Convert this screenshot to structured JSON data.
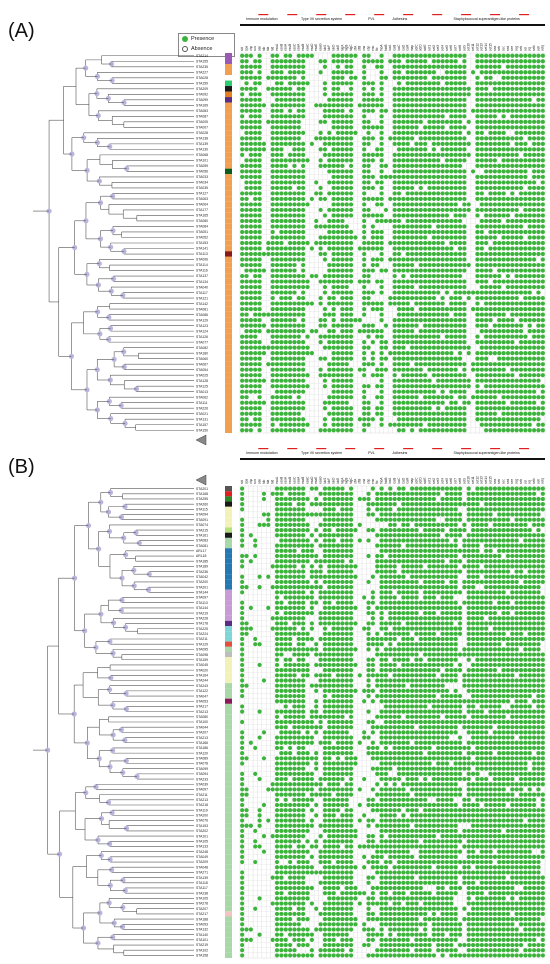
{
  "panels": [
    {
      "id": "A",
      "label": "(A)"
    },
    {
      "id": "B",
      "label": "(B)"
    }
  ],
  "legend": {
    "presence": "Presence",
    "absence": "Absence"
  },
  "colors": {
    "presence": "#3cb43c",
    "absence": "#ffffff",
    "tree": "#555555",
    "node": "#b9b6dd",
    "highlight": "#e02020"
  },
  "categories": [
    "Immune modulation",
    "Type VII secretion system",
    "PVL",
    "Adhesins",
    "Staphylococcal superantigen-like proteins"
  ],
  "genes": [
    "sbi",
    "spa",
    "chp",
    "scn",
    "sak",
    "hlb",
    "hla",
    "hld",
    "esxA",
    "esxB",
    "essA",
    "essB",
    "essC",
    "esaA",
    "esaB",
    "esaC",
    "esaD",
    "esaE",
    "esaG",
    "lukS",
    "lukF",
    "lukD",
    "lukE",
    "hlgA",
    "hlgB",
    "hlgC",
    "clfA",
    "clfB",
    "cna",
    "ebp",
    "eno",
    "fib",
    "fnbA",
    "fnbB",
    "icaA",
    "icaB",
    "icaC",
    "icaD",
    "icaR",
    "map",
    "sdrC",
    "sdrD",
    "sdrE",
    "set1",
    "set2",
    "set3",
    "set4",
    "set5",
    "set6",
    "set7",
    "set8",
    "set9",
    "set10",
    "set11",
    "set12",
    "set13",
    "set14",
    "set15",
    "sea",
    "seb",
    "sec",
    "sed",
    "see",
    "seg",
    "seh",
    "sei",
    "sej",
    "selk",
    "sell",
    "selq"
  ],
  "panel_a": {
    "strains": [
      "STA214",
      "STA155",
      "STA235",
      "STA227",
      "STA028",
      "STA159",
      "STA209",
      "STA092",
      "STA099",
      "STA169",
      "STA083",
      "STA087",
      "STA005",
      "STA007",
      "STA028",
      "STA138",
      "STA139",
      "STA130",
      "STA068",
      "STA101",
      "STA059",
      "STA056",
      "STA033",
      "STA034",
      "STA035",
      "STA127",
      "STA063",
      "STA064",
      "STA177",
      "STA165",
      "STA080",
      "STA084",
      "STA051",
      "STA052",
      "STA153",
      "STA141",
      "STA113",
      "STA006",
      "STA114",
      "STA116",
      "STA137",
      "STA134",
      "STA040",
      "STA117",
      "STA121",
      "STA142",
      "STA081",
      "STA086",
      "STA129",
      "STA123",
      "STA124",
      "STA126",
      "STA077",
      "STA082",
      "STA180",
      "STA060",
      "STA067",
      "STA054",
      "STA025",
      "STA128",
      "STA125",
      "STA013",
      "STA062",
      "STA111",
      "STA226",
      "STA021",
      "STA131",
      "STA157",
      "STA150"
    ],
    "colorbar": [
      "#9b59b6",
      "#9b59b6",
      "#f0a050",
      "#f0a050",
      "#ffffff",
      "#2ecc71",
      "#1a1a1a",
      "#e67e22",
      "#5b2c83",
      "#f0a050",
      "#f0a050",
      "#f0a050",
      "#f0a050",
      "#f0a050",
      "#f0a050",
      "#f0a050",
      "#f0a050",
      "#f0a050",
      "#f0a050",
      "#f0a050",
      "#f0a050",
      "#0b5d1e",
      "#f0a050",
      "#f0a050",
      "#f0a050",
      "#f0a050",
      "#f0a050",
      "#f0a050",
      "#f0a050",
      "#f0a050",
      "#f0a050",
      "#f0a050",
      "#f0a050",
      "#f0a050",
      "#f0a050",
      "#f0a050",
      "#8b1a1a",
      "#f0a050",
      "#f0a050",
      "#f0a050",
      "#f0a050",
      "#f0a050",
      "#f0a050",
      "#f0a050",
      "#f0a050",
      "#f0a050",
      "#f0a050",
      "#f0a050",
      "#f0a050",
      "#f0a050",
      "#f0a050",
      "#f0a050",
      "#f0a050",
      "#f0a050",
      "#f0a050",
      "#f0a050",
      "#f0a050",
      "#f0a050",
      "#f0a050",
      "#f0a050",
      "#f0a050",
      "#f0a050",
      "#f0a050",
      "#f0a050",
      "#f0a050",
      "#f0a050",
      "#f0a050",
      "#f0a050",
      "#f0a050"
    ]
  },
  "panel_b": {
    "strains": [
      "STA201",
      "STA168",
      "STA255",
      "STA260",
      "STA115",
      "STA094",
      "STA091",
      "STA074",
      "STA215",
      "STA161",
      "STA083",
      "STA081",
      "ARL17",
      "ARL18",
      "STA185",
      "STA189",
      "STA236",
      "STA042",
      "STA200",
      "STA201",
      "STA144",
      "STA097",
      "STA113",
      "STA144",
      "STA219",
      "STA228",
      "STA178",
      "STA225",
      "STA224",
      "STA211",
      "STA129",
      "STA095",
      "STA098",
      "STA159",
      "STA045",
      "STA020",
      "STA164",
      "STA244",
      "STA243",
      "STA122",
      "STA047",
      "STA053",
      "STA217",
      "STA213",
      "STA080",
      "STA100",
      "STA044",
      "STA207",
      "STA213",
      "STA166",
      "STA186",
      "STA120",
      "STA089",
      "STA078",
      "STA099",
      "STA094",
      "STA233",
      "STA039",
      "STA097",
      "STA211",
      "STA213",
      "STA218",
      "STA119",
      "STA200",
      "STA076",
      "STA153",
      "STA202",
      "STA101",
      "STA105",
      "STA133",
      "STA248",
      "STA049",
      "STA209",
      "STA048",
      "STA271",
      "STA139",
      "STA118",
      "STA117",
      "STA238",
      "STA105",
      "STA278",
      "STA207",
      "STA217",
      "STA188",
      "STA093",
      "STA132",
      "STA140",
      "STA101",
      "STA219",
      "STA102",
      "STA158"
    ],
    "colorbar": [
      "#555555",
      "#e02020",
      "#2a8a2a",
      "#1a1a1a",
      "#f2f2b8",
      "#f2f2b8",
      "#f2f2b8",
      "#f2f2b8",
      "#b2e07a",
      "#1a1a1a",
      "#a8d8a8",
      "#a8d8a8",
      "#2479b5",
      "#2479b5",
      "#2479b5",
      "#2479b5",
      "#2479b5",
      "#2479b5",
      "#2479b5",
      "#2479b5",
      "#c79bd4",
      "#c79bd4",
      "#c79bd4",
      "#c79bd4",
      "#c79bd4",
      "#c79bd4",
      "#5a2d82",
      "#7fd6d6",
      "#7fd6d6",
      "#7fd6d6",
      "#e74c3c",
      "#a8d8a8",
      "#bdbdbd",
      "#f2f2b8",
      "#f2f2b8",
      "#f2f2b8",
      "#f2f2b8",
      "#f2f2b8",
      "#a8d8a8",
      "#a8d8a8",
      "#a8d8a8",
      "#8b1a5a",
      "#a8d8a8",
      "#a8d8a8",
      "#a8d8a8",
      "#a8d8a8",
      "#a8d8a8",
      "#a8d8a8",
      "#a8d8a8",
      "#a8d8a8",
      "#a8d8a8",
      "#a8d8a8",
      "#a8d8a8",
      "#a8d8a8",
      "#a8d8a8",
      "#a8d8a8",
      "#a8d8a8",
      "#a8d8a8",
      "#a8d8a8",
      "#a8d8a8",
      "#a8d8a8",
      "#a8d8a8",
      "#a8d8a8",
      "#a8d8a8",
      "#a8d8a8",
      "#a8d8a8",
      "#a8d8a8",
      "#a8d8a8",
      "#a8d8a8",
      "#a8d8a8",
      "#a8d8a8",
      "#a8d8a8",
      "#a8d8a8",
      "#a8d8a8",
      "#a8d8a8",
      "#a8d8a8",
      "#a8d8a8",
      "#a8d8a8",
      "#a8d8a8",
      "#a8d8a8",
      "#a8d8a8",
      "#a8d8a8",
      "#f4c2c2",
      "#a8d8a8",
      "#a8d8a8",
      "#a8d8a8",
      "#a8d8a8",
      "#a8d8a8",
      "#a8d8a8",
      "#a8d8a8",
      "#a8d8a8"
    ]
  }
}
